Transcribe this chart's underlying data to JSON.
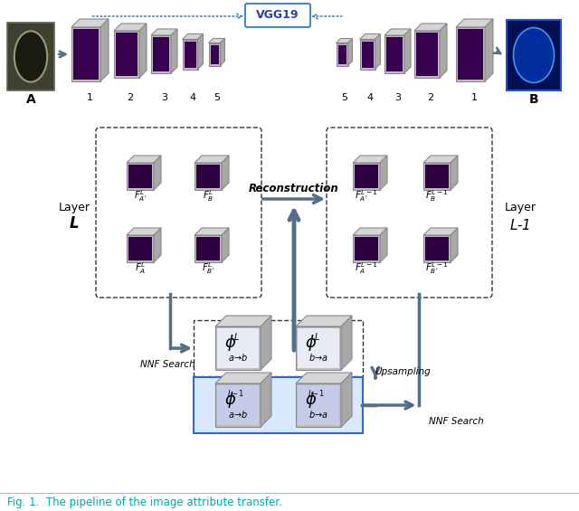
{
  "title": "Fig. 1.  The pipeline of the image attribute transfer.",
  "title_color": "#00AAAA",
  "vgg19_label": "VGG19",
  "layer_L_label": "Layer  $\\boldsymbol{L}$",
  "layer_L1_label": "Layer\n$L$-1",
  "A_label": "A",
  "B_label": "B",
  "reconstruction_label": "Reconstruction",
  "upsampling_label": "Upsampling",
  "nnf_search_label1": "NNF Search",
  "nnf_search_label2": "NNF Search",
  "top_numbers_left": [
    "1",
    "2",
    "3",
    "4",
    "5"
  ],
  "top_numbers_right": [
    "5",
    "4",
    "3",
    "2",
    "1"
  ],
  "arrow_color": "#546E8A",
  "dashed_color": "#4488CC",
  "bg_color": "#FFFFFF",
  "purple_img": "#3a0050",
  "blue_img": "#001a55"
}
